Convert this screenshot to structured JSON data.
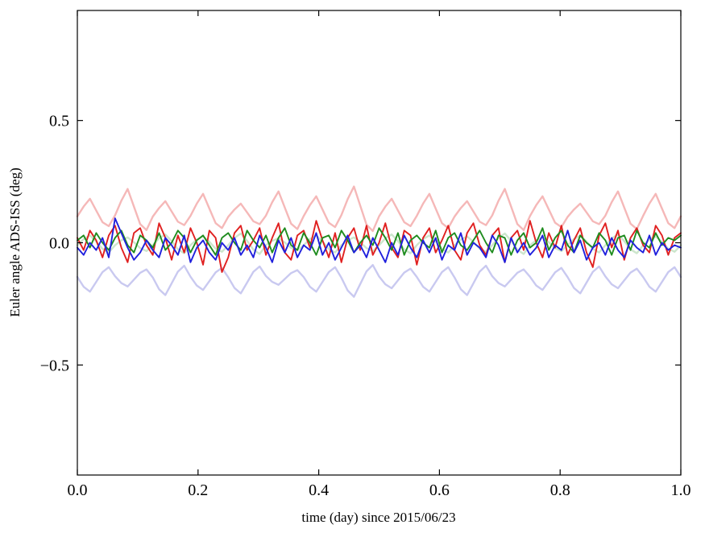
{
  "figure": {
    "background": "#ffffff",
    "frame_color": "#000000"
  },
  "chart_data": {
    "type": "line",
    "title": "",
    "xlabel": "time (day) since 2015/06/23",
    "ylabel": "Euler angle ADS-ISS (deg)",
    "xlim": [
      0.0,
      1.0
    ],
    "ylim": [
      -0.95,
      0.95
    ],
    "grid": false,
    "legend": "none",
    "xticks": {
      "values": [
        0.0,
        0.2,
        0.4,
        0.6,
        0.8,
        1.0
      ],
      "labels": [
        "0.0",
        "0.2",
        "0.4",
        "0.6",
        "0.8",
        "1.0"
      ]
    },
    "yticks": {
      "values": [
        -0.5,
        0.0,
        0.5
      ],
      "labels": [
        "−0.5",
        "0.0",
        "0.5"
      ]
    },
    "x_sampling": {
      "n": 97,
      "min": 0.0,
      "max": 1.0
    },
    "series": [
      {
        "name": "light-red-line",
        "color": "#f5b8b8",
        "width": 2.4,
        "values": [
          0.108,
          0.148,
          0.18,
          0.132,
          0.084,
          0.068,
          0.112,
          0.172,
          0.22,
          0.148,
          0.076,
          0.052,
          0.107,
          0.142,
          0.17,
          0.128,
          0.086,
          0.072,
          0.11,
          0.16,
          0.2,
          0.14,
          0.08,
          0.06,
          0.106,
          0.136,
          0.16,
          0.124,
          0.088,
          0.076,
          0.111,
          0.166,
          0.21,
          0.144,
          0.078,
          0.056,
          0.109,
          0.154,
          0.19,
          0.136,
          0.082,
          0.064,
          0.113,
          0.178,
          0.23,
          0.152,
          0.074,
          0.048,
          0.108,
          0.148,
          0.18,
          0.132,
          0.084,
          0.068,
          0.11,
          0.16,
          0.2,
          0.14,
          0.08,
          0.06,
          0.107,
          0.142,
          0.17,
          0.128,
          0.086,
          0.072,
          0.112,
          0.172,
          0.22,
          0.148,
          0.076,
          0.052,
          0.109,
          0.154,
          0.19,
          0.136,
          0.082,
          0.064,
          0.106,
          0.136,
          0.16,
          0.124,
          0.088,
          0.076,
          0.111,
          0.166,
          0.21,
          0.144,
          0.078,
          0.056,
          0.11,
          0.16,
          0.2,
          0.14,
          0.08,
          0.06,
          0.108
        ]
      },
      {
        "name": "light-blue-line",
        "color": "#c9c9f0",
        "width": 2.4,
        "values": [
          -0.14,
          -0.18,
          -0.2,
          -0.16,
          -0.12,
          -0.1,
          -0.137,
          -0.165,
          -0.179,
          -0.151,
          -0.123,
          -0.109,
          -0.142,
          -0.19,
          -0.214,
          -0.166,
          -0.118,
          -0.094,
          -0.139,
          -0.175,
          -0.193,
          -0.157,
          -0.121,
          -0.103,
          -0.141,
          -0.185,
          -0.207,
          -0.163,
          -0.119,
          -0.097,
          -0.136,
          -0.16,
          -0.172,
          -0.148,
          -0.124,
          -0.112,
          -0.14,
          -0.18,
          -0.2,
          -0.16,
          -0.12,
          -0.1,
          -0.143,
          -0.195,
          -0.221,
          -0.169,
          -0.117,
          -0.091,
          -0.138,
          -0.17,
          -0.186,
          -0.154,
          -0.122,
          -0.106,
          -0.14,
          -0.18,
          -0.2,
          -0.16,
          -0.12,
          -0.1,
          -0.142,
          -0.19,
          -0.214,
          -0.166,
          -0.118,
          -0.094,
          -0.137,
          -0.165,
          -0.179,
          -0.151,
          -0.123,
          -0.109,
          -0.139,
          -0.175,
          -0.193,
          -0.157,
          -0.121,
          -0.103,
          -0.141,
          -0.185,
          -0.207,
          -0.163,
          -0.119,
          -0.097,
          -0.138,
          -0.17,
          -0.186,
          -0.154,
          -0.122,
          -0.106,
          -0.14,
          -0.18,
          -0.2,
          -0.16,
          -0.12,
          -0.1,
          -0.14
        ]
      },
      {
        "name": "light-green-line",
        "color": "#cde6cd",
        "width": 2.4,
        "values": [
          -0.01,
          0.015,
          0.03,
          0.005,
          -0.025,
          -0.04,
          -0.01,
          0.01,
          0.022,
          0.002,
          -0.022,
          -0.034,
          -0.01,
          0.018,
          0.034,
          0.007,
          -0.027,
          -0.043,
          -0.01,
          0.013,
          0.026,
          0.004,
          -0.024,
          -0.037,
          -0.01,
          0.02,
          0.038,
          0.008,
          -0.028,
          -0.046,
          -0.01,
          0.008,
          0.018,
          0.001,
          -0.021,
          -0.031,
          -0.01,
          0.015,
          0.03,
          0.005,
          -0.025,
          -0.04,
          -0.01,
          0.01,
          0.022,
          0.002,
          -0.022,
          -0.034,
          -0.01,
          0.018,
          0.034,
          0.007,
          -0.027,
          -0.043,
          -0.01,
          0.015,
          0.03,
          0.005,
          -0.025,
          -0.04,
          -0.01,
          0.013,
          0.026,
          0.004,
          -0.024,
          -0.037,
          -0.01,
          0.02,
          0.038,
          0.008,
          -0.028,
          -0.046,
          -0.01,
          0.01,
          0.022,
          0.002,
          -0.022,
          -0.034,
          -0.01,
          0.015,
          0.03,
          0.005,
          -0.025,
          -0.04,
          -0.01,
          0.018,
          0.034,
          0.007,
          -0.027,
          -0.043,
          -0.01,
          0.013,
          0.026,
          0.004,
          -0.024,
          -0.037,
          -0.01
        ]
      },
      {
        "name": "red-line",
        "color": "#e02020",
        "width": 1.9,
        "values": [
          0.02,
          -0.03,
          0.05,
          0.01,
          -0.06,
          0.03,
          0.07,
          -0.02,
          -0.08,
          0.04,
          0.06,
          -0.01,
          -0.05,
          0.08,
          0.02,
          -0.07,
          0.03,
          -0.04,
          0.06,
          0.0,
          -0.09,
          0.05,
          0.02,
          -0.12,
          -0.06,
          0.04,
          0.07,
          -0.03,
          0.01,
          0.06,
          -0.05,
          0.02,
          0.08,
          -0.04,
          -0.07,
          0.03,
          0.05,
          -0.02,
          0.09,
          0.01,
          -0.06,
          0.04,
          -0.08,
          0.02,
          0.06,
          -0.03,
          0.07,
          -0.05,
          0.0,
          0.08,
          -0.02,
          -0.06,
          0.05,
          0.03,
          -0.09,
          0.02,
          0.06,
          -0.04,
          0.01,
          0.07,
          -0.03,
          -0.07,
          0.04,
          0.08,
          -0.01,
          -0.05,
          0.03,
          0.06,
          -0.08,
          0.02,
          0.05,
          -0.03,
          0.09,
          0.0,
          -0.06,
          0.04,
          -0.02,
          0.07,
          -0.05,
          0.01,
          0.06,
          -0.04,
          -0.1,
          0.03,
          0.08,
          -0.02,
          0.05,
          -0.07,
          0.02,
          0.06,
          -0.01,
          -0.04,
          0.07,
          0.03,
          -0.05,
          0.02,
          0.04
        ]
      },
      {
        "name": "green-line",
        "color": "#1f8c1f",
        "width": 1.9,
        "values": [
          0.01,
          0.03,
          -0.02,
          0.04,
          0.0,
          -0.03,
          0.02,
          0.05,
          -0.01,
          -0.04,
          0.03,
          0.01,
          -0.02,
          0.04,
          -0.03,
          0.0,
          0.05,
          0.02,
          -0.04,
          0.01,
          0.03,
          -0.01,
          -0.05,
          0.02,
          0.04,
          0.0,
          -0.03,
          0.05,
          0.01,
          -0.02,
          0.03,
          -0.04,
          0.02,
          0.06,
          -0.01,
          -0.03,
          0.04,
          0.0,
          -0.05,
          0.02,
          0.03,
          -0.02,
          0.05,
          0.01,
          -0.04,
          0.0,
          0.03,
          -0.01,
          0.06,
          0.02,
          -0.03,
          0.04,
          -0.05,
          0.01,
          0.03,
          0.0,
          -0.02,
          0.05,
          -0.04,
          0.02,
          0.04,
          -0.01,
          -0.03,
          0.01,
          0.05,
          0.0,
          -0.04,
          0.03,
          0.02,
          -0.05,
          0.01,
          0.04,
          -0.02,
          0.0,
          0.06,
          -0.03,
          0.02,
          0.05,
          -0.01,
          -0.04,
          0.03,
          0.0,
          -0.02,
          0.04,
          0.01,
          -0.05,
          0.02,
          0.03,
          -0.03,
          0.05,
          0.0,
          -0.02,
          0.04,
          -0.01,
          0.02,
          0.01,
          0.03
        ]
      },
      {
        "name": "blue-line",
        "color": "#2020dd",
        "width": 1.9,
        "values": [
          -0.02,
          -0.05,
          0.0,
          -0.03,
          0.02,
          -0.06,
          0.1,
          0.04,
          -0.02,
          -0.07,
          -0.04,
          0.01,
          -0.03,
          -0.06,
          0.02,
          -0.01,
          -0.05,
          0.03,
          -0.08,
          -0.02,
          0.01,
          -0.04,
          -0.07,
          0.0,
          -0.03,
          0.02,
          -0.05,
          -0.01,
          -0.06,
          0.03,
          -0.02,
          -0.08,
          0.01,
          -0.04,
          0.02,
          -0.06,
          -0.01,
          -0.03,
          0.04,
          -0.05,
          0.0,
          -0.07,
          -0.02,
          0.03,
          -0.04,
          -0.01,
          -0.06,
          0.02,
          -0.03,
          -0.08,
          0.0,
          -0.05,
          0.03,
          -0.02,
          -0.06,
          0.01,
          -0.04,
          0.02,
          -0.07,
          -0.01,
          -0.03,
          0.04,
          -0.05,
          0.0,
          -0.02,
          -0.06,
          0.03,
          -0.01,
          -0.08,
          0.02,
          -0.04,
          0.0,
          -0.05,
          -0.02,
          0.03,
          -0.06,
          -0.01,
          -0.03,
          0.05,
          -0.04,
          0.01,
          -0.07,
          -0.02,
          0.0,
          -0.05,
          0.02,
          -0.03,
          -0.06,
          0.01,
          -0.02,
          -0.04,
          0.03,
          -0.05,
          0.0,
          -0.03,
          -0.01,
          -0.02
        ]
      }
    ]
  }
}
